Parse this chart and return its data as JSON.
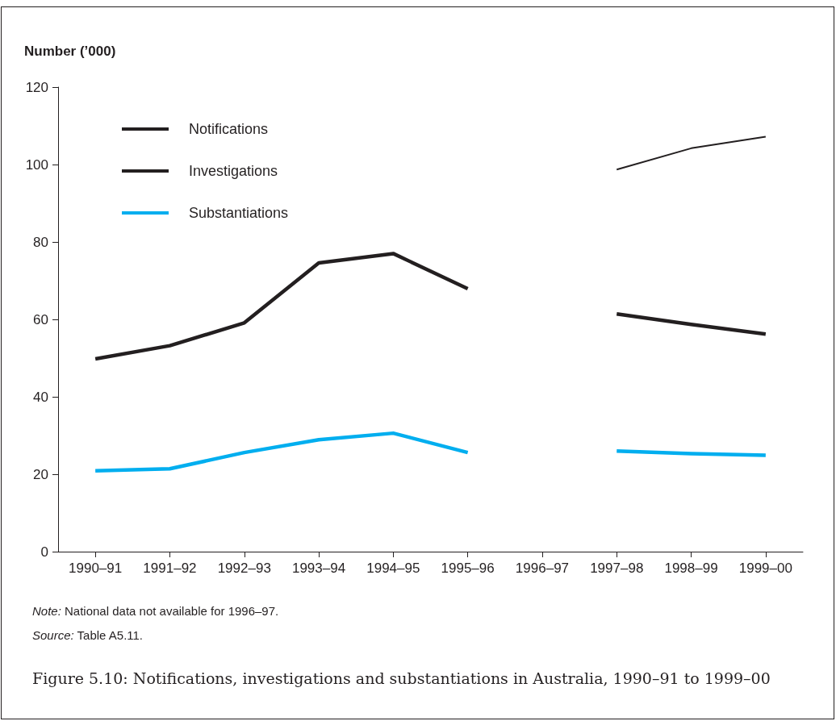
{
  "chart_data": {
    "type": "line",
    "title": "Figure 5.10: Notifications, investigations and substantiations in Australia, 1990–91 to 1999–00",
    "ylabel": "Number (’000)",
    "categories": [
      "1990–91",
      "1991–92",
      "1992–93",
      "1993–94",
      "1994–95",
      "1995–96",
      "1996–97",
      "1997–98",
      "1998–99",
      "1999–00"
    ],
    "series": [
      {
        "name": "Notifications",
        "color": "#231f20",
        "values": [
          null,
          null,
          null,
          null,
          null,
          null,
          null,
          98.7,
          104.2,
          107.2
        ]
      },
      {
        "name": "Investigations",
        "color": "#231f20",
        "values": [
          49.8,
          53.2,
          59.1,
          74.6,
          77,
          67.9,
          null,
          61.4,
          58.7,
          56.2
        ]
      },
      {
        "name": "Substantiations",
        "color": "#00aeef",
        "values": [
          20.9,
          21.4,
          25.6,
          28.9,
          30.6,
          25.6,
          null,
          26,
          25.3,
          24.9
        ]
      }
    ],
    "ylim": [
      0,
      120
    ],
    "yticks": [
      0,
      20,
      40,
      60,
      80,
      100,
      120
    ],
    "grid": false,
    "legend": "top left",
    "marker": "none",
    "line_style": "solid",
    "annotations": [
      "Note: National data not available for 1996–97.",
      "Source: Table A5.11."
    ]
  }
}
